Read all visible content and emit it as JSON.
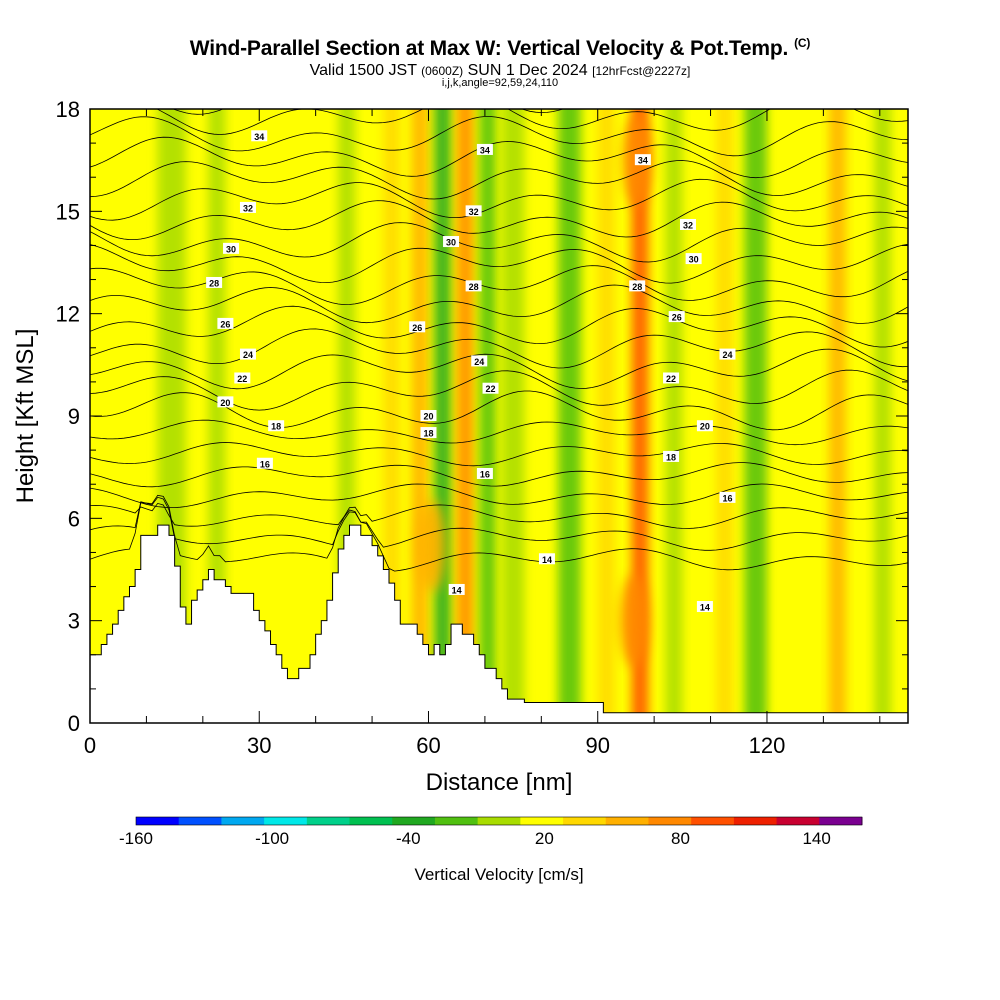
{
  "header": {
    "title": "Wind-Parallel Section at Max W: Vertical Velocity & Pot.Temp.",
    "copyright": "(C)",
    "valid_main": "Valid 1500 JST",
    "valid_z": "(0600Z)",
    "valid_date": "SUN 1 Dec 2024",
    "valid_fcst": "[12hrFcst@2227z]",
    "subtitle": "i,j,k,angle=92,59,24,110"
  },
  "chart_data": {
    "type": "heatmap",
    "title": "Wind-Parallel Section at Max W: Vertical Velocity & Pot.Temp.",
    "xlabel": "Distance [nm]",
    "ylabel": "Height [Kft MSL]",
    "xlim": [
      0,
      145
    ],
    "ylim": [
      0,
      18
    ],
    "x_ticks": [
      "0",
      "30",
      "60",
      "90",
      "120"
    ],
    "y_ticks": [
      "0",
      "3",
      "6",
      "9",
      "12",
      "15",
      "18"
    ],
    "colorbar": {
      "label": "Vertical Velocity [cm/s]",
      "tick_labels": [
        "-160",
        "-100",
        "-40",
        "20",
        "80",
        "140"
      ],
      "levels": [
        -160,
        -140,
        -120,
        -100,
        -80,
        -60,
        -40,
        -20,
        0,
        20,
        40,
        60,
        80,
        100,
        120,
        140,
        160
      ],
      "colors": [
        "#0000ff",
        "#0050ff",
        "#00a8f0",
        "#00e8e8",
        "#00d08a",
        "#00c050",
        "#20a820",
        "#50c010",
        "#a8dc00",
        "#ffff00",
        "#ffd800",
        "#ffb000",
        "#ff8800",
        "#ff5000",
        "#ee2000",
        "#c80030",
        "#7a0090"
      ]
    },
    "background_color": "#ffff00",
    "vertical_velocity_bands": [
      {
        "x": 5,
        "w": 4,
        "value": 0
      },
      {
        "x": 12,
        "w": 5,
        "value": -5
      },
      {
        "x": 21,
        "w": 3,
        "value": -20
      },
      {
        "x": 27,
        "w": 3,
        "value": 10
      },
      {
        "x": 35,
        "w": 6,
        "value": 0
      },
      {
        "x": 44,
        "w": 3,
        "value": -15
      },
      {
        "x": 52,
        "w": 3,
        "value": 20
      },
      {
        "x": 57,
        "w": 3,
        "value": 40
      },
      {
        "x": 61,
        "w": 3,
        "value": -60
      },
      {
        "x": 65,
        "w": 3,
        "value": 60
      },
      {
        "x": 69,
        "w": 3,
        "value": -30
      },
      {
        "x": 73,
        "w": 4,
        "value": -20
      },
      {
        "x": 83,
        "w": 4,
        "value": -40
      },
      {
        "x": 90,
        "w": 3,
        "value": 20
      },
      {
        "x": 96,
        "w": 3,
        "value": 80
      },
      {
        "x": 102,
        "w": 3,
        "value": -20
      },
      {
        "x": 111,
        "w": 3,
        "value": 20
      },
      {
        "x": 116,
        "w": 4,
        "value": -40
      },
      {
        "x": 122,
        "w": 3,
        "value": 0
      },
      {
        "x": 131,
        "w": 3,
        "value": 40
      },
      {
        "x": 139,
        "w": 3,
        "value": -10
      }
    ],
    "vertical_velocity_cores": [
      {
        "x": 96.5,
        "y": 3.0,
        "value": 60
      },
      {
        "x": 60.5,
        "y": 5.2,
        "value": 40
      },
      {
        "x": 97.0,
        "y": 16.5,
        "value": 70
      }
    ],
    "terrain": {
      "x": [
        0,
        2,
        2,
        3,
        3,
        4,
        4,
        5,
        5,
        6,
        6,
        7,
        7,
        8,
        8,
        9,
        9,
        12,
        12,
        14,
        14,
        15,
        15,
        16,
        16,
        17,
        17,
        18,
        18,
        19,
        19,
        20,
        20,
        21,
        21,
        22,
        22,
        24,
        24,
        25,
        25,
        26,
        26,
        27,
        27,
        28,
        28,
        29,
        29,
        30,
        30,
        31,
        31,
        32,
        32,
        33,
        33,
        34,
        34,
        35,
        35,
        36,
        36,
        37,
        37,
        39,
        39,
        40,
        40,
        41,
        41,
        42,
        42,
        43,
        43,
        44,
        44,
        45,
        45,
        46,
        46,
        48,
        48,
        49,
        49,
        50,
        50,
        51,
        51,
        52,
        52,
        53,
        53,
        54,
        54,
        55,
        55,
        56,
        56,
        57,
        57,
        58,
        58,
        59,
        59,
        60,
        60,
        61,
        61,
        62,
        62,
        63,
        63,
        64,
        64,
        65,
        65,
        66,
        66,
        67,
        67,
        68,
        68,
        69,
        69,
        70,
        70,
        71,
        71,
        72,
        72,
        73,
        73,
        74,
        74,
        75,
        75,
        77,
        77,
        80,
        80,
        91,
        91,
        92,
        92,
        145
      ],
      "y": [
        2.0,
        2.0,
        2.3,
        2.3,
        2.6,
        2.6,
        2.9,
        2.9,
        3.3,
        3.3,
        3.7,
        3.7,
        4.0,
        4.0,
        4.5,
        4.5,
        5.5,
        5.5,
        5.8,
        5.8,
        5.5,
        5.5,
        4.6,
        4.6,
        3.4,
        3.4,
        2.9,
        2.9,
        3.6,
        3.6,
        3.9,
        3.9,
        4.2,
        4.2,
        4.5,
        4.5,
        4.2,
        4.2,
        4.0,
        4.0,
        3.8,
        3.8,
        3.8,
        3.8,
        3.8,
        3.8,
        3.8,
        3.8,
        3.3,
        3.3,
        3.0,
        3.0,
        2.7,
        2.7,
        2.3,
        2.3,
        2.0,
        2.0,
        1.6,
        1.6,
        1.3,
        1.3,
        1.3,
        1.3,
        1.6,
        1.6,
        2.0,
        2.0,
        2.6,
        2.6,
        3.0,
        3.0,
        3.6,
        3.6,
        4.4,
        4.4,
        5.1,
        5.1,
        5.5,
        5.5,
        5.8,
        5.8,
        5.5,
        5.5,
        5.5,
        5.5,
        5.2,
        5.2,
        4.9,
        4.9,
        4.5,
        4.5,
        4.1,
        4.1,
        3.6,
        3.6,
        2.9,
        2.9,
        2.9,
        2.9,
        2.9,
        2.9,
        2.6,
        2.6,
        2.3,
        2.3,
        2.0,
        2.0,
        2.3,
        2.3,
        2.0,
        2.0,
        2.3,
        2.3,
        2.9,
        2.9,
        2.9,
        2.9,
        2.6,
        2.6,
        2.6,
        2.6,
        2.3,
        2.3,
        2.0,
        2.0,
        1.6,
        1.6,
        1.6,
        1.6,
        1.3,
        1.3,
        1.0,
        1.0,
        0.7,
        0.7,
        0.7,
        0.7,
        0.6,
        0.6,
        0.6,
        0.6,
        0.3,
        0.3,
        0.3,
        0.3
      ]
    },
    "potential_temperature_labels": [
      {
        "text": "34",
        "x": 30,
        "y": 17.2
      },
      {
        "text": "34",
        "x": 70,
        "y": 16.8
      },
      {
        "text": "34",
        "x": 98,
        "y": 16.5
      },
      {
        "text": "32",
        "x": 28,
        "y": 15.1
      },
      {
        "text": "32",
        "x": 68,
        "y": 15.0
      },
      {
        "text": "32",
        "x": 106,
        "y": 14.6
      },
      {
        "text": "30",
        "x": 25,
        "y": 13.9
      },
      {
        "text": "30",
        "x": 64,
        "y": 14.1
      },
      {
        "text": "30",
        "x": 107,
        "y": 13.6
      },
      {
        "text": "28",
        "x": 22,
        "y": 12.9
      },
      {
        "text": "28",
        "x": 68,
        "y": 12.8
      },
      {
        "text": "28",
        "x": 97,
        "y": 12.8
      },
      {
        "text": "26",
        "x": 24,
        "y": 11.7
      },
      {
        "text": "26",
        "x": 58,
        "y": 11.6
      },
      {
        "text": "26",
        "x": 104,
        "y": 11.9
      },
      {
        "text": "24",
        "x": 28,
        "y": 10.8
      },
      {
        "text": "24",
        "x": 69,
        "y": 10.6
      },
      {
        "text": "24",
        "x": 113,
        "y": 10.8
      },
      {
        "text": "22",
        "x": 27,
        "y": 10.1
      },
      {
        "text": "22",
        "x": 71,
        "y": 9.8
      },
      {
        "text": "22",
        "x": 103,
        "y": 10.1
      },
      {
        "text": "20",
        "x": 24,
        "y": 9.4
      },
      {
        "text": "20",
        "x": 60,
        "y": 9.0
      },
      {
        "text": "20",
        "x": 109,
        "y": 8.7
      },
      {
        "text": "18",
        "x": 33,
        "y": 8.7
      },
      {
        "text": "18",
        "x": 60,
        "y": 8.5
      },
      {
        "text": "18",
        "x": 103,
        "y": 7.8
      },
      {
        "text": "16",
        "x": 31,
        "y": 7.6
      },
      {
        "text": "16",
        "x": 70,
        "y": 7.3
      },
      {
        "text": "16",
        "x": 113,
        "y": 6.6
      },
      {
        "text": "14",
        "x": 81,
        "y": 4.8
      },
      {
        "text": "14",
        "x": 65,
        "y": 3.9
      },
      {
        "text": "14",
        "x": 109,
        "y": 3.4
      }
    ]
  }
}
